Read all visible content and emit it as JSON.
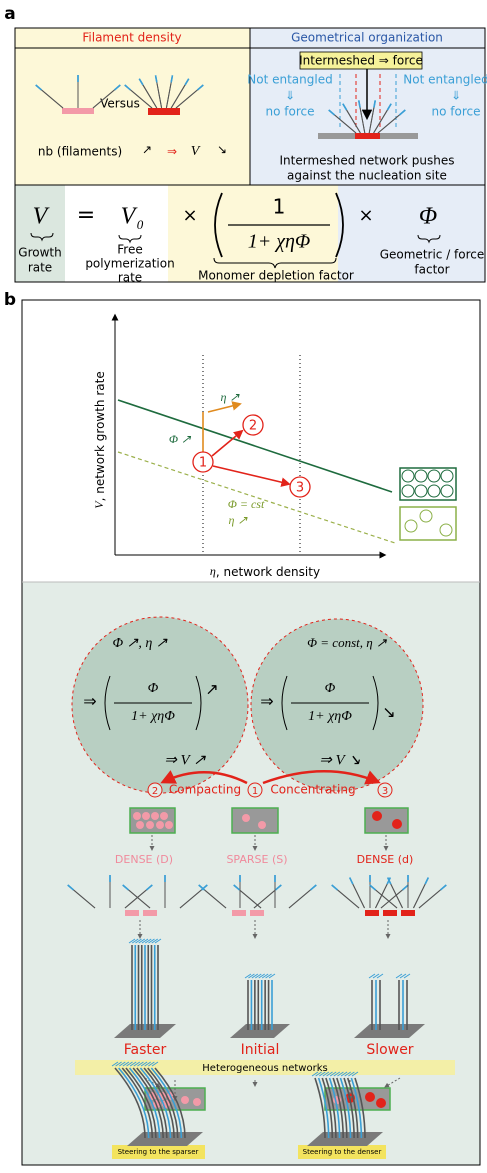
{
  "panel_a": {
    "label": "a",
    "filament_density": {
      "title": "Filament density",
      "versus": "Versus",
      "nb": "nb (filaments)",
      "up": "↗",
      "implies": "⇒",
      "v": "V",
      "down": "↘"
    },
    "geometrical_organization": {
      "title": "Geometrical organization",
      "intermeshed": "Intermeshed ⇒ force",
      "left": {
        "not_entangled": "Not entangled",
        "arrow": "⇓",
        "no_force": "no force"
      },
      "right": {
        "not_entangled": "Not entangled",
        "arrow": "⇓",
        "no_force": "no force"
      },
      "caption": [
        "Intermeshed network pushes",
        "against the nucleation site"
      ]
    },
    "equation": {
      "growth_rate": {
        "symbol": "V",
        "label": [
          "Growth",
          "rate"
        ]
      },
      "equals": "=",
      "free_rate": {
        "symbol": "V",
        "subscript": "0",
        "label": [
          "Free",
          "polymerization",
          "rate"
        ]
      },
      "times_1": "×",
      "depletion": {
        "numerator": "1",
        "denominator": "1+ χηΦ",
        "label": "Monomer depletion factor"
      },
      "times_2": "×",
      "geometric": {
        "symbol": "Φ",
        "label": [
          "Geometric / force",
          "factor"
        ]
      }
    }
  },
  "panel_b": {
    "label": "b",
    "plot": {
      "y_symbol": "V",
      "y_label": ",  network growth rate",
      "x_symbol": "η",
      "x_label": ", network density",
      "eta_up": "η ↗",
      "phi_up": "Φ ↗",
      "phi_cst": "Φ = cst",
      "eta_up_2": "η ↗",
      "markers": [
        "1",
        "2",
        "3"
      ]
    },
    "scheme": {
      "left_circle": {
        "header": "Φ ↗, η ↗",
        "implies": "⇒",
        "numerator": "Φ",
        "denominator": "1+ χηΦ",
        "trend": "↗",
        "result": "⇒ V ↗"
      },
      "right_circle": {
        "header": "Φ = const, η ↗",
        "implies": "⇒",
        "numerator": "Φ",
        "denominator": "1+ χηΦ",
        "trend": "↘",
        "result": "⇒ V ↘"
      },
      "markers": [
        "2",
        "1",
        "3"
      ],
      "compacting": "Compacting",
      "concentrating": "Concentrating",
      "states": [
        {
          "name": "DENSE (D)",
          "speed": "Faster"
        },
        {
          "name": "SPARSE (S)",
          "speed": "Initial"
        },
        {
          "name": "DENSE (d)",
          "speed": "Slower"
        }
      ],
      "heterogeneous": "Heterogeneous networks",
      "steering": [
        "Steering to the sparser",
        "Steering to the denser"
      ]
    }
  }
}
